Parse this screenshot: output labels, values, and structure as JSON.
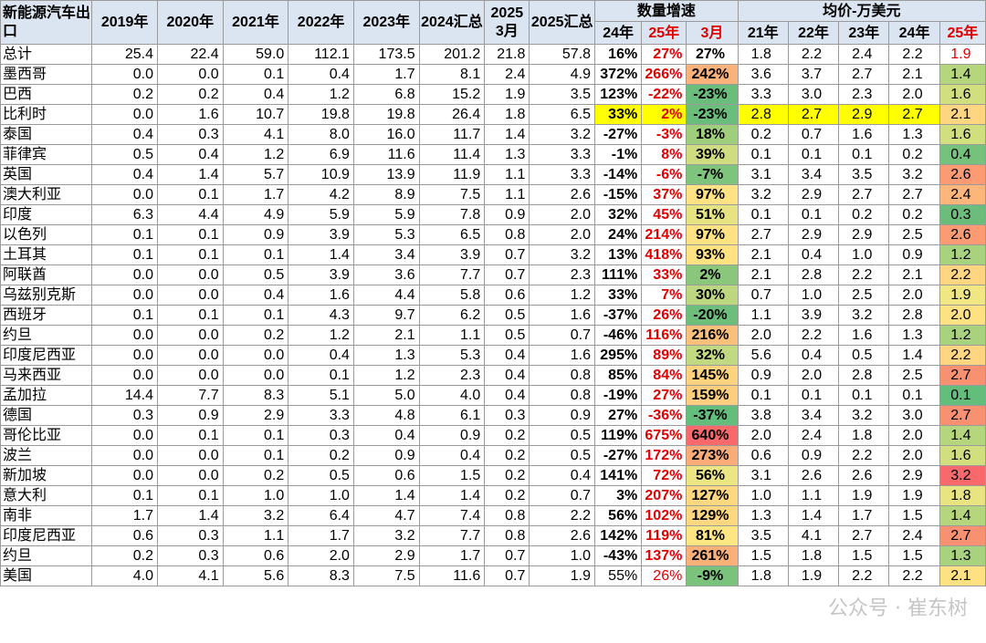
{
  "header": {
    "country": "新能源汽车出口",
    "years": [
      "2019年",
      "2020年",
      "2021年",
      "2022年",
      "2023年"
    ],
    "total24": "2024汇总",
    "mar25": "2025 3月",
    "total25": "2025汇总",
    "growth_group": "数量增速",
    "growth_cols": [
      "24年",
      "25年",
      "3月"
    ],
    "price_group": "均价-万美元",
    "price_cols": [
      "21年",
      "22年",
      "23年",
      "24年",
      "25年"
    ]
  },
  "rows": [
    {
      "name": "总计",
      "v": [
        "25.4",
        "22.4",
        "59.0",
        "112.1",
        "173.5",
        "201.2",
        "21.8",
        "57.8"
      ],
      "g24": "16%",
      "g25": "27%",
      "gm": "27%",
      "gm_bg": "#ffffff",
      "p": [
        "1.8",
        "2.2",
        "2.4",
        "2.2",
        "1.9"
      ],
      "p25_bg": "#ffffff",
      "p25_color": "#e00000",
      "yellow": false
    },
    {
      "name": "墨西哥",
      "v": [
        "0.0",
        "0.0",
        "0.1",
        "0.4",
        "1.7",
        "8.1",
        "2.4",
        "4.9"
      ],
      "g24": "372%",
      "g25": "266%",
      "gm": "242%",
      "gm_bg": "#f8b27a",
      "p": [
        "3.6",
        "3.7",
        "2.7",
        "2.1",
        "1.4"
      ],
      "p25_bg": "#b5d67c",
      "p25_color": "#000000",
      "yellow": false
    },
    {
      "name": "巴西",
      "v": [
        "0.2",
        "0.2",
        "0.4",
        "1.2",
        "6.8",
        "15.2",
        "1.9",
        "3.5"
      ],
      "g24": "123%",
      "g25": "-22%",
      "gm": "-23%",
      "gm_bg": "#6bbd7b",
      "p": [
        "3.3",
        "3.0",
        "2.3",
        "2.0",
        "1.6"
      ],
      "p25_bg": "#d2df7f",
      "p25_color": "#000000",
      "yellow": false
    },
    {
      "name": "比利时",
      "v": [
        "0.0",
        "1.6",
        "10.7",
        "19.8",
        "19.8",
        "26.4",
        "1.8",
        "6.5"
      ],
      "g24": "33%",
      "g25": "2%",
      "gm": "-23%",
      "gm_bg": "#6bbd7b",
      "p": [
        "2.8",
        "2.7",
        "2.9",
        "2.7",
        "2.1"
      ],
      "p25_bg": "#fed580",
      "p25_color": "#000000",
      "yellow": true
    },
    {
      "name": "泰国",
      "v": [
        "0.4",
        "0.3",
        "4.1",
        "8.0",
        "16.0",
        "11.7",
        "1.4",
        "3.2"
      ],
      "g24": "-27%",
      "g25": "-3%",
      "gm": "18%",
      "gm_bg": "#9fcf7d",
      "p": [
        "0.2",
        "0.7",
        "1.6",
        "1.3",
        "1.6"
      ],
      "p25_bg": "#d2df7f",
      "p25_color": "#000000",
      "yellow": false
    },
    {
      "name": "菲律宾",
      "v": [
        "0.5",
        "0.4",
        "1.2",
        "6.9",
        "11.6",
        "11.4",
        "1.3",
        "3.3"
      ],
      "g24": "-1%",
      "g25": "8%",
      "gm": "39%",
      "gm_bg": "#cfdd80",
      "p": [
        "0.1",
        "0.1",
        "0.1",
        "0.2",
        "0.4"
      ],
      "p25_bg": "#76c17b",
      "p25_color": "#000000",
      "yellow": false
    },
    {
      "name": "英国",
      "v": [
        "0.4",
        "1.4",
        "5.7",
        "10.9",
        "13.9",
        "11.9",
        "1.1",
        "3.3"
      ],
      "g24": "-14%",
      "g25": "-6%",
      "gm": "-7%",
      "gm_bg": "#7ec47c",
      "p": [
        "3.1",
        "3.4",
        "3.5",
        "3.2",
        "2.6"
      ],
      "p25_bg": "#fa9b74",
      "p25_color": "#000000",
      "yellow": false
    },
    {
      "name": "澳大利亚",
      "v": [
        "0.0",
        "0.1",
        "1.7",
        "4.2",
        "8.9",
        "7.5",
        "1.1",
        "2.6"
      ],
      "g24": "-15%",
      "g25": "37%",
      "gm": "97%",
      "gm_bg": "#ffe283",
      "p": [
        "3.2",
        "2.9",
        "2.7",
        "2.7",
        "2.4"
      ],
      "p25_bg": "#fcb57a",
      "p25_color": "#000000",
      "yellow": false
    },
    {
      "name": "印度",
      "v": [
        "6.3",
        "4.4",
        "4.9",
        "5.9",
        "5.9",
        "7.8",
        "0.9",
        "2.0"
      ],
      "g24": "32%",
      "g25": "45%",
      "gm": "51%",
      "gm_bg": "#e6e482",
      "p": [
        "0.1",
        "0.1",
        "0.2",
        "0.2",
        "0.3"
      ],
      "p25_bg": "#6cbd7b",
      "p25_color": "#000000",
      "yellow": false
    },
    {
      "name": "以色列",
      "v": [
        "0.1",
        "0.1",
        "0.9",
        "3.9",
        "5.3",
        "6.5",
        "0.8",
        "2.0"
      ],
      "g24": "24%",
      "g25": "214%",
      "gm": "97%",
      "gm_bg": "#ffe283",
      "p": [
        "2.7",
        "2.9",
        "2.9",
        "2.5",
        "2.6"
      ],
      "p25_bg": "#fa9b74",
      "p25_color": "#000000",
      "yellow": false
    },
    {
      "name": "土耳其",
      "v": [
        "0.1",
        "0.1",
        "0.1",
        "1.4",
        "3.4",
        "3.9",
        "0.7",
        "3.2"
      ],
      "g24": "13%",
      "g25": "418%",
      "gm": "93%",
      "gm_bg": "#ffe383",
      "p": [
        "2.1",
        "0.4",
        "1.0",
        "0.9",
        "1.2"
      ],
      "p25_bg": "#a8d27e",
      "p25_color": "#000000",
      "yellow": false
    },
    {
      "name": "阿联酋",
      "v": [
        "0.0",
        "0.0",
        "0.5",
        "3.9",
        "3.6",
        "7.7",
        "0.7",
        "2.3"
      ],
      "g24": "111%",
      "g25": "33%",
      "gm": "2%",
      "gm_bg": "#8ac77c",
      "p": [
        "2.1",
        "2.8",
        "2.2",
        "2.1",
        "2.2"
      ],
      "p25_bg": "#fed580",
      "p25_color": "#000000",
      "yellow": false
    },
    {
      "name": "乌兹别克斯",
      "v": [
        "0.0",
        "0.0",
        "0.4",
        "1.6",
        "4.4",
        "5.8",
        "0.6",
        "1.2"
      ],
      "g24": "33%",
      "g25": "7%",
      "gm": "30%",
      "gm_bg": "#bcd780",
      "p": [
        "0.7",
        "1.0",
        "2.5",
        "2.0",
        "1.9"
      ],
      "p25_bg": "#f0e683",
      "p25_color": "#000000",
      "yellow": false
    },
    {
      "name": "西班牙",
      "v": [
        "0.1",
        "0.1",
        "0.1",
        "4.3",
        "9.7",
        "6.2",
        "0.5",
        "1.6"
      ],
      "g24": "-37%",
      "g25": "26%",
      "gm": "-20%",
      "gm_bg": "#6ebe7b",
      "p": [
        "1.1",
        "3.9",
        "3.2",
        "2.8",
        "2.0"
      ],
      "p25_bg": "#fee182",
      "p25_color": "#000000",
      "yellow": false
    },
    {
      "name": "约旦",
      "v": [
        "0.0",
        "0.0",
        "0.2",
        "1.2",
        "2.1",
        "1.1",
        "0.5",
        "0.7"
      ],
      "g24": "-46%",
      "g25": "116%",
      "gm": "216%",
      "gm_bg": "#f9c07c",
      "p": [
        "2.0",
        "2.2",
        "1.6",
        "1.3",
        "1.2"
      ],
      "p25_bg": "#a8d27e",
      "p25_color": "#000000",
      "yellow": false
    },
    {
      "name": "印度尼西亚",
      "v": [
        "0.0",
        "0.0",
        "0.0",
        "0.4",
        "1.3",
        "5.3",
        "0.4",
        "1.6"
      ],
      "g24": "295%",
      "g25": "89%",
      "gm": "32%",
      "gm_bg": "#c1d980",
      "p": [
        "5.6",
        "0.4",
        "0.5",
        "1.4",
        "2.2"
      ],
      "p25_bg": "#fed580",
      "p25_color": "#000000",
      "yellow": false
    },
    {
      "name": "马来西亚",
      "v": [
        "0.0",
        "0.0",
        "0.0",
        "0.1",
        "1.2",
        "2.3",
        "0.4",
        "0.8"
      ],
      "g24": "85%",
      "g25": "84%",
      "gm": "145%",
      "gm_bg": "#fdd380",
      "p": [
        "0.9",
        "2.0",
        "2.8",
        "2.5",
        "2.7"
      ],
      "p25_bg": "#f89072",
      "p25_color": "#000000",
      "yellow": false
    },
    {
      "name": "孟加拉",
      "v": [
        "14.4",
        "7.7",
        "8.3",
        "5.1",
        "5.0",
        "4.0",
        "0.4",
        "0.8"
      ],
      "g24": "-19%",
      "g25": "27%",
      "gm": "159%",
      "gm_bg": "#fcce7f",
      "p": [
        "0.1",
        "0.1",
        "0.1",
        "0.1",
        "0.1"
      ],
      "p25_bg": "#63be7b",
      "p25_color": "#000000",
      "yellow": false
    },
    {
      "name": "德国",
      "v": [
        "0.3",
        "0.9",
        "2.9",
        "3.3",
        "4.8",
        "6.1",
        "0.3",
        "0.9"
      ],
      "g24": "27%",
      "g25": "-36%",
      "gm": "-37%",
      "gm_bg": "#63be7b",
      "p": [
        "3.8",
        "3.4",
        "3.2",
        "3.0",
        "2.7"
      ],
      "p25_bg": "#f89072",
      "p25_color": "#000000",
      "yellow": false
    },
    {
      "name": "哥伦比亚",
      "v": [
        "0.0",
        "0.1",
        "0.1",
        "0.3",
        "0.4",
        "0.9",
        "0.2",
        "0.5"
      ],
      "g24": "119%",
      "g25": "675%",
      "gm": "640%",
      "gm_bg": "#f8696b",
      "p": [
        "2.0",
        "2.4",
        "1.8",
        "2.0",
        "1.4"
      ],
      "p25_bg": "#b5d67c",
      "p25_color": "#000000",
      "yellow": false
    },
    {
      "name": "波兰",
      "v": [
        "0.0",
        "0.0",
        "0.1",
        "0.2",
        "0.9",
        "0.4",
        "0.2",
        "0.5"
      ],
      "g24": "-27%",
      "g25": "172%",
      "gm": "273%",
      "gm_bg": "#f9ac78",
      "p": [
        "0.6",
        "0.9",
        "2.2",
        "2.0",
        "1.6"
      ],
      "p25_bg": "#d2df7f",
      "p25_color": "#000000",
      "yellow": false
    },
    {
      "name": "新加坡",
      "v": [
        "0.0",
        "0.0",
        "0.2",
        "0.5",
        "0.6",
        "1.5",
        "0.2",
        "0.4"
      ],
      "g24": "141%",
      "g25": "72%",
      "gm": "56%",
      "gm_bg": "#ece583",
      "p": [
        "3.1",
        "2.6",
        "2.6",
        "2.9",
        "3.2"
      ],
      "p25_bg": "#f8696b",
      "p25_color": "#000000",
      "yellow": false
    },
    {
      "name": "意大利",
      "v": [
        "0.1",
        "0.1",
        "1.0",
        "1.0",
        "1.4",
        "1.4",
        "0.2",
        "0.7"
      ],
      "g24": "3%",
      "g25": "207%",
      "gm": "127%",
      "gm_bg": "#fed880",
      "p": [
        "1.0",
        "1.1",
        "1.9",
        "1.9",
        "1.8"
      ],
      "p25_bg": "#e8e482",
      "p25_color": "#000000",
      "yellow": false
    },
    {
      "name": "南非",
      "v": [
        "1.7",
        "1.4",
        "3.2",
        "6.4",
        "4.7",
        "7.4",
        "0.8",
        "2.2"
      ],
      "g24": "56%",
      "g25": "102%",
      "gm": "129%",
      "gm_bg": "#fed880",
      "p": [
        "1.3",
        "1.4",
        "1.7",
        "1.5",
        "1.4"
      ],
      "p25_bg": "#b5d67c",
      "p25_color": "#000000",
      "yellow": false
    },
    {
      "name": "印度尼西亚",
      "v": [
        "0.6",
        "0.3",
        "1.1",
        "1.7",
        "3.2",
        "7.7",
        "0.8",
        "2.6"
      ],
      "g24": "142%",
      "g25": "119%",
      "gm": "81%",
      "gm_bg": "#fee683",
      "p": [
        "3.5",
        "4.1",
        "2.7",
        "2.4",
        "2.7"
      ],
      "p25_bg": "#f89072",
      "p25_color": "#000000",
      "yellow": false
    },
    {
      "name": "约旦",
      "v": [
        "0.2",
        "0.3",
        "0.6",
        "2.0",
        "2.9",
        "1.7",
        "0.7",
        "1.0"
      ],
      "g24": "-43%",
      "g25": "137%",
      "gm": "261%",
      "gm_bg": "#f9b179",
      "p": [
        "1.5",
        "1.8",
        "1.5",
        "1.5",
        "1.3"
      ],
      "p25_bg": "#a8d27e",
      "p25_color": "#000000",
      "yellow": false
    },
    {
      "name": "美国",
      "v": [
        "4.0",
        "4.1",
        "5.6",
        "8.3",
        "7.5",
        "11.6",
        "0.7",
        "1.9"
      ],
      "g24": "55%",
      "g25": "26%",
      "gm": "-9%",
      "gm_bg": "#7bc37c",
      "p": [
        "1.8",
        "1.9",
        "2.2",
        "2.2",
        "2.1"
      ],
      "p25_bg": "#fee182",
      "p25_color": "#000000",
      "yellow": false,
      "light": true
    }
  ],
  "watermark": "公众号 · 崔东树"
}
